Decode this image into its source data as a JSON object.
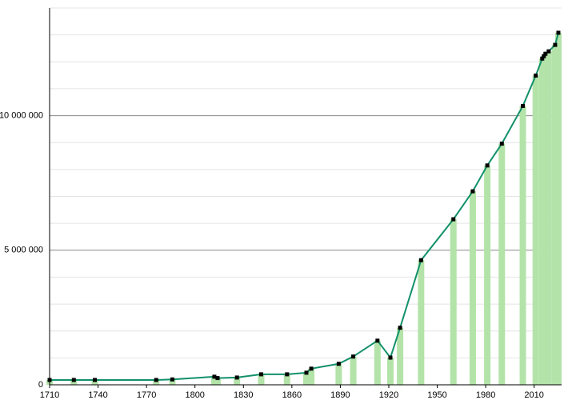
{
  "chart_data": {
    "type": "line",
    "x": [
      1710,
      1725,
      1738,
      1776,
      1786,
      1812,
      1814,
      1826,
      1841,
      1857,
      1869,
      1872,
      1889,
      1898,
      1913,
      1921,
      1927,
      1940,
      1960,
      1972,
      1981,
      1990,
      2003,
      2011,
      2015,
      2016,
      2017,
      2019,
      2023,
      2025
    ],
    "series": [
      {
        "color": "#12906a",
        "bar_color": "#b3e3a8",
        "values": [
          180000,
          180000,
          180000,
          180000,
          200000,
          300000,
          250000,
          270000,
          390000,
          390000,
          450000,
          600000,
          780000,
          1050000,
          1640000,
          1010000,
          2120000,
          4630000,
          6150000,
          7190000,
          8150000,
          8960000,
          10360000,
          11490000,
          12120000,
          12210000,
          12300000,
          12390000,
          12630000,
          13080000
        ]
      }
    ],
    "xlim": [
      1710,
      2027
    ],
    "xticks": [
      1710,
      1740,
      1770,
      1800,
      1830,
      1860,
      1890,
      1920,
      1950,
      1980,
      2010
    ],
    "ylim": [
      0,
      14000000
    ],
    "yticks": [
      0,
      {
        "value": 5000000,
        "label": "5 000 000"
      },
      {
        "value": 10000000,
        "label": "10 000 000"
      }
    ],
    "minor_yticks": [
      1000000,
      2000000,
      3000000,
      4000000,
      6000000,
      7000000,
      8000000,
      9000000,
      11000000,
      12000000,
      13000000,
      14000000
    ],
    "grid": true
  }
}
